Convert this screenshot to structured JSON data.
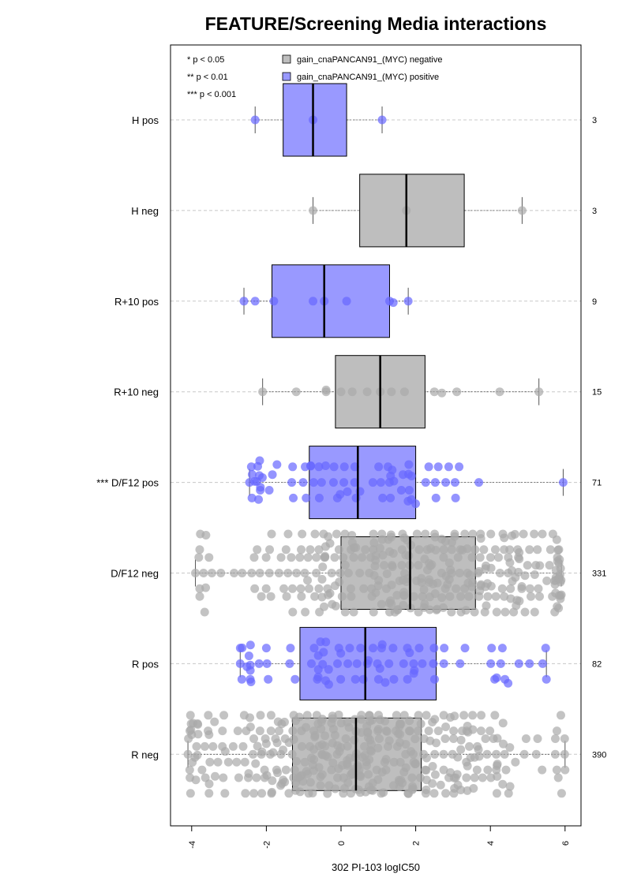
{
  "chart_data": {
    "type": "box",
    "title": "FEATURE/Screening Media interactions",
    "xlabel": "302 PI-103 logIC50",
    "xlim": [
      -4.5,
      6.5
    ],
    "x_ticks": [
      -4,
      -2,
      0,
      2,
      4,
      6
    ],
    "x_tick_labels": [
      "-4",
      "-2",
      "0",
      "2",
      "4",
      "6"
    ],
    "grid": "horizontal dashed per group",
    "legend_position": "top-left",
    "significance_legend": [
      "* p < 0.05",
      "** p < 0.01",
      "*** p < 0.001"
    ],
    "series": [
      {
        "name": "gain_cnaPANCAN91_(MYC) negative",
        "color": "#bebebe",
        "point_color": "#aaaaaa"
      },
      {
        "name": "gain_cnaPANCAN91_(MYC) positive",
        "color": "#9999ff",
        "point_color": "#6666ff"
      }
    ],
    "groups": [
      {
        "label": "H pos",
        "n": "3",
        "series": 1,
        "stats": {
          "whisker_low": -2.3,
          "q1": -1.55,
          "median": -0.75,
          "q3": 0.15,
          "whisker_high": 1.1
        },
        "points": [
          -2.3,
          -0.75,
          1.1
        ]
      },
      {
        "label": "H neg",
        "n": "3",
        "series": 0,
        "stats": {
          "whisker_low": -0.75,
          "q1": 0.5,
          "median": 1.75,
          "q3": 3.3,
          "whisker_high": 4.85
        },
        "points": [
          -0.75,
          1.75,
          4.85
        ]
      },
      {
        "label": "R+10 pos",
        "n": "9",
        "series": 1,
        "stats": {
          "whisker_low": -2.6,
          "q1": -1.85,
          "median": -0.45,
          "q3": 1.3,
          "whisker_high": 1.8
        },
        "points": [
          -2.6,
          -2.3,
          -1.8,
          -0.75,
          -0.45,
          0.15,
          1.3,
          1.4,
          1.8
        ]
      },
      {
        "label": "R+10 neg",
        "n": "15",
        "series": 0,
        "stats": {
          "whisker_low": -2.1,
          "q1": -0.15,
          "median": 1.05,
          "q3": 2.25,
          "whisker_high": 5.3
        },
        "points": [
          -2.1,
          -1.2,
          -0.4,
          -0.4,
          0.0,
          0.3,
          0.7,
          1.05,
          1.35,
          1.7,
          2.5,
          2.7,
          3.1,
          4.25,
          5.3
        ]
      },
      {
        "label": "D/F12 pos",
        "n": "71",
        "series": 1,
        "stats": {
          "whisker_low": -2.45,
          "q1": -0.85,
          "median": 0.45,
          "q3": 2.0,
          "whisker_high": 5.95
        }
      },
      {
        "label": "D/F12 neg",
        "n": "331",
        "series": 0,
        "stats": {
          "whisker_low": -3.9,
          "q1": 0.0,
          "median": 1.85,
          "q3": 3.6,
          "whisker_high": 5.9
        }
      },
      {
        "label": "R pos",
        "n": "82",
        "series": 1,
        "stats": {
          "whisker_low": -2.7,
          "q1": -1.1,
          "median": 0.65,
          "q3": 2.55,
          "whisker_high": 5.5
        }
      },
      {
        "label": "R neg",
        "n": "390",
        "series": 0,
        "stats": {
          "whisker_low": -4.1,
          "q1": -1.3,
          "median": 0.4,
          "q3": 2.15,
          "whisker_high": 6.0
        }
      }
    ],
    "significance_prefixes": {
      "D/F12 pos": "***"
    }
  }
}
